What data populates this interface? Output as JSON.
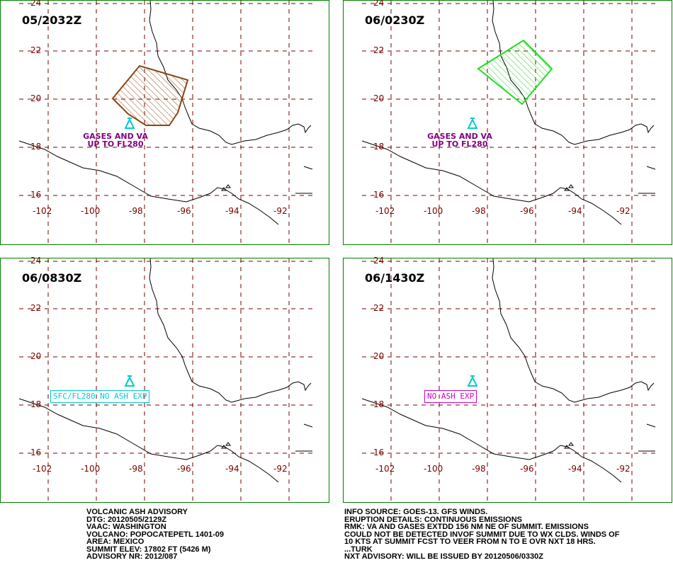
{
  "panels": [
    {
      "title": "05/2032Z",
      "label_lines": [
        "GASES AND VA",
        "UP TO FL280"
      ],
      "label_color": "#800080",
      "polygon_color": "#8B4513"
    },
    {
      "title": "06/0230Z",
      "label_lines": [
        "GASES AND VA",
        "UP TO FL280"
      ],
      "label_color": "#800080",
      "polygon_color": "#22dd22"
    },
    {
      "title": "06/0830Z",
      "box_label": "SFC/FL280 NO ASH EXP",
      "box_color": "#00cccc"
    },
    {
      "title": "06/1430Z",
      "box_label": "NO ASH EXP",
      "box_color": "#cc00cc"
    }
  ],
  "axes": {
    "lat_labels": [
      "24",
      "22",
      "20",
      "18",
      "16"
    ],
    "lon_labels": [
      "-102",
      "-100",
      "-98",
      "-96",
      "-94",
      "-92"
    ],
    "grid_color": "#7a0000"
  },
  "advisory_left": [
    "VOLCANIC ASH ADVISORY",
    "DTG: 20120505/2129Z",
    "VAAC: WASHINGTON",
    "VOLCANO: POPOCATEPETL 1401-09",
    "AREA: MEXICO",
    "SUMMIT ELEV: 17802 FT (5426 M)",
    "ADVISORY NR: 2012/087"
  ],
  "advisory_right": [
    "INFO SOURCE: GOES-13. GFS WINDS.",
    "ERUPTION DETAILS: CONTINUOUS EMISSIONS",
    "RMK: VA AND GASES EXTDD 156 NM NE OF SUMMIT. EMISSIONS",
    "COULD NOT BE DETECTED INVOF SUMMIT DUE TO WX CLDS. WINDS OF",
    "10 KTS AT SUMMIT FCST TO VEER FROM N TO E OVR NXT 18 HRS.",
    "...TURK",
    "NXT ADVISORY: WILL BE ISSUED BY 20120506/0330Z"
  ],
  "volcano_icon": "volcano-icon",
  "volcano_color": "#00cccc"
}
